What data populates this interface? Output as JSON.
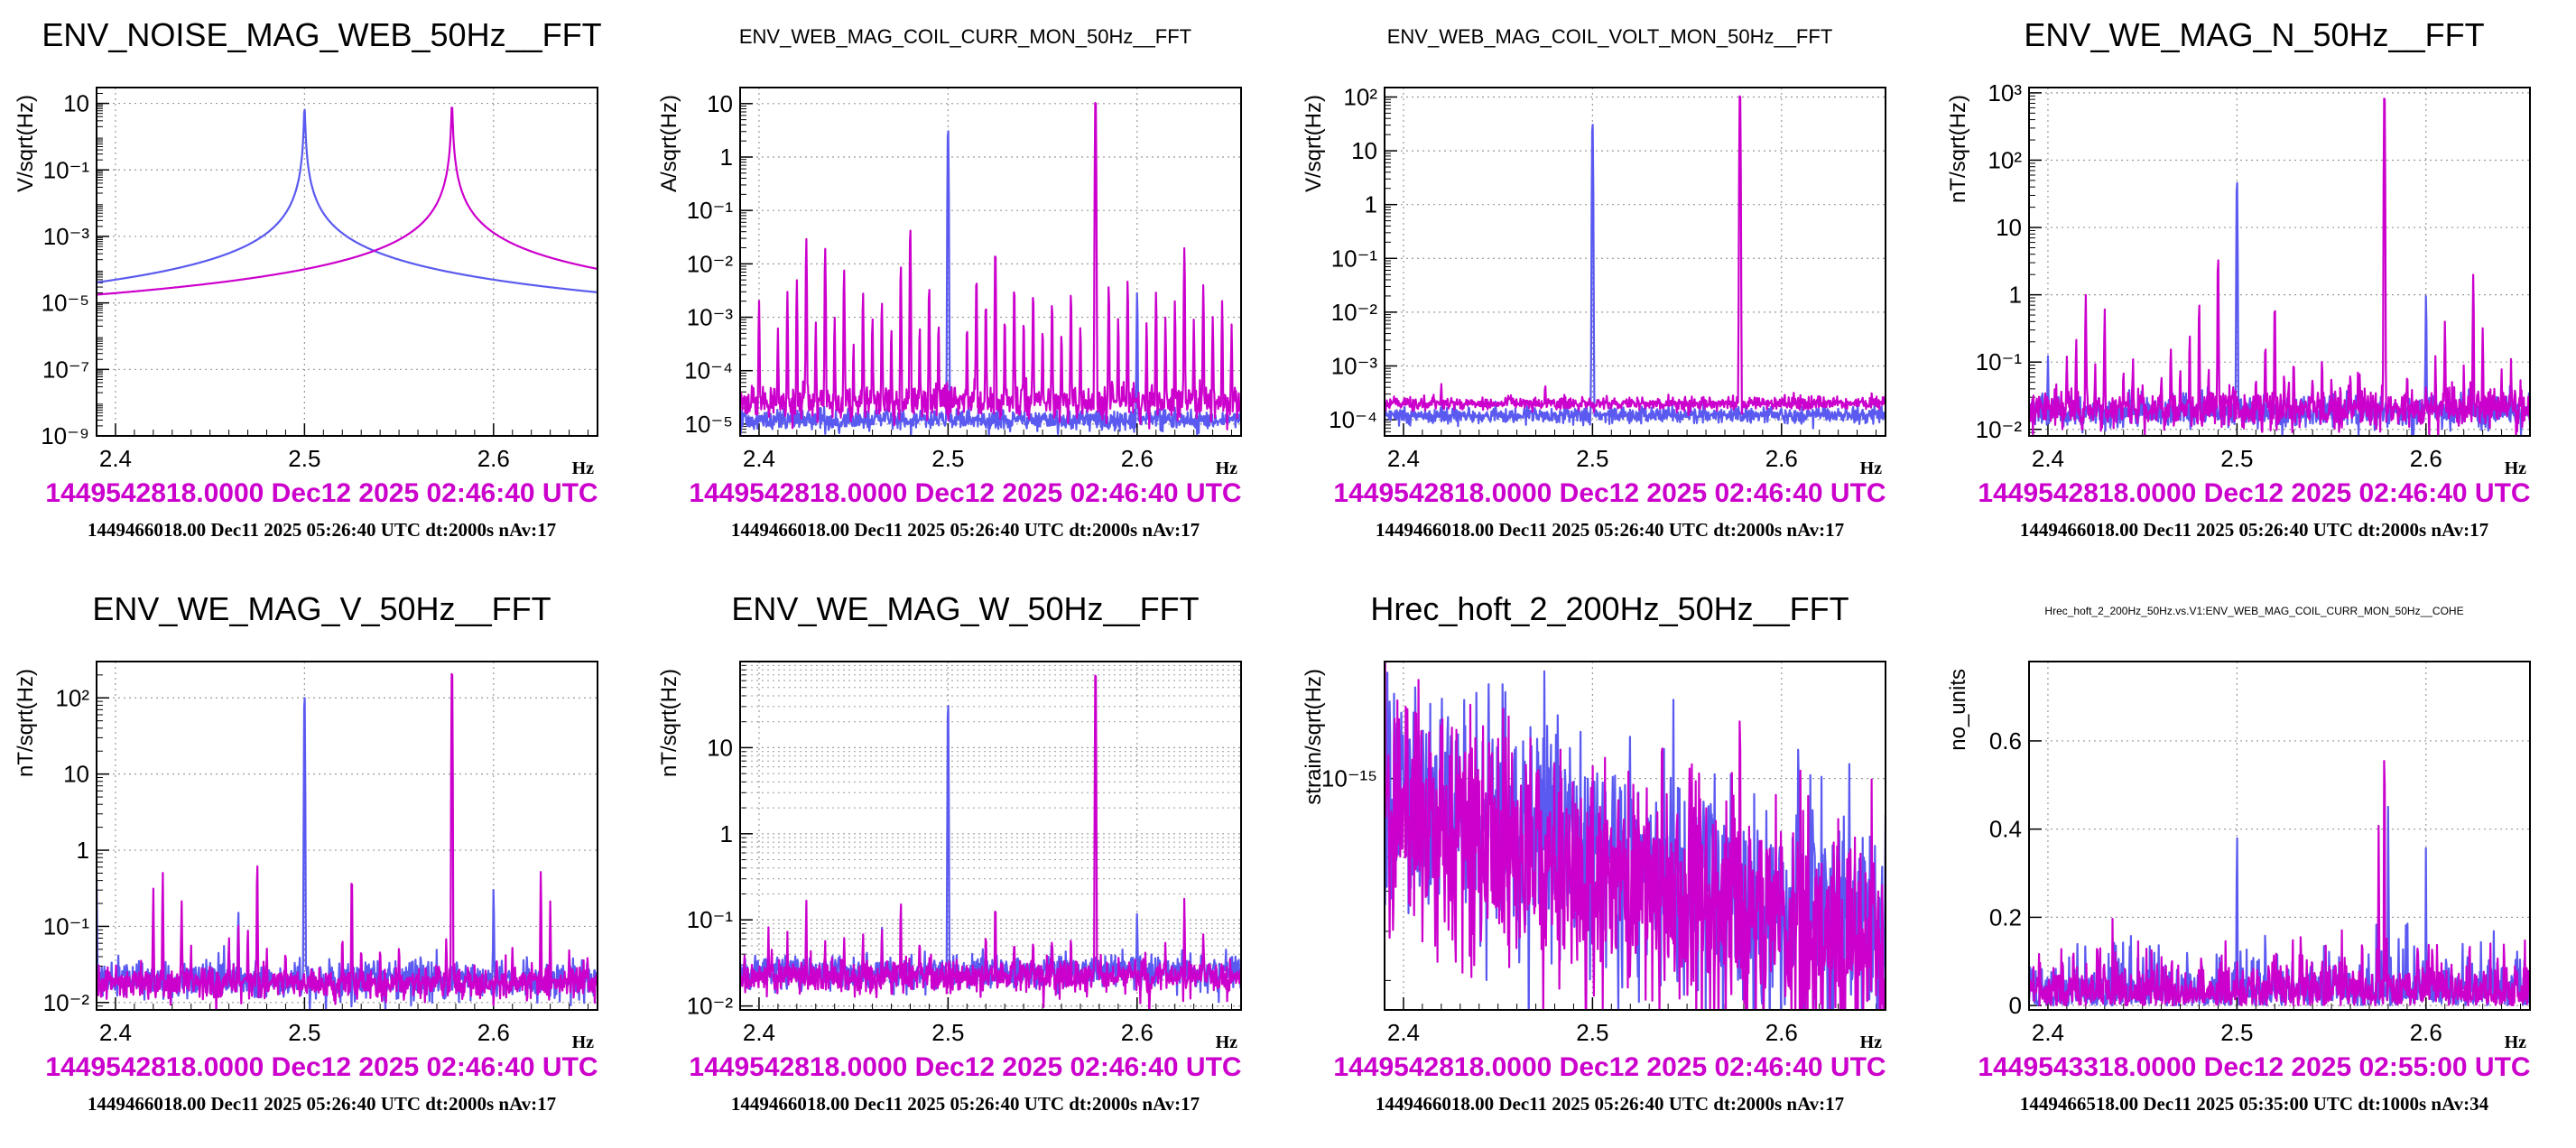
{
  "colors": {
    "reference": "#5a5af0",
    "current": "#cc00cc",
    "grid": "#9a9a9a"
  },
  "chart_data": [
    {
      "type": "line",
      "title": "ENV_NOISE_MAG_WEB_50Hz__FFT",
      "title_size": "large",
      "xlabel": "Hz",
      "ylabel": "V/sqrt(Hz)",
      "xlim": [
        2.39,
        2.655
      ],
      "ylim": [
        1e-09,
        30
      ],
      "yscale": "log",
      "xticks": [
        2.4,
        2.5,
        2.6
      ],
      "yticks": [
        1e-09,
        1e-07,
        1e-05,
        0.001,
        0.1,
        10
      ],
      "ytick_labels": [
        "10⁻⁹",
        "10⁻⁷",
        "10⁻⁵",
        "10⁻³",
        "10⁻¹",
        "10"
      ],
      "timestamp": "1449542818.0000 Dec12 2025 02:46:40 UTC",
      "reference_info": "1449466018.00 Dec11 2025 05:26:40 UTC dt:2000s nAv:17",
      "series": [
        {
          "role": "reference",
          "base": 2e-08,
          "resonance": {
            "x": 2.5,
            "peak": 8,
            "width": 0.00025
          },
          "spikes": [
            [
              2.6,
              1e-07
            ]
          ],
          "noise": 0.08
        },
        {
          "role": "current",
          "base": 2e-08,
          "resonance": {
            "x": 2.578,
            "peak": 10,
            "width": 0.00025
          },
          "spikes": [],
          "noise": 0.45
        }
      ]
    },
    {
      "type": "line",
      "title": "ENV_WEB_MAG_COIL_CURR_MON_50Hz__FFT",
      "title_size": "small",
      "xlabel": "Hz",
      "ylabel": "A/sqrt(Hz)",
      "xlim": [
        2.39,
        2.655
      ],
      "ylim": [
        6e-06,
        20
      ],
      "yscale": "log",
      "xticks": [
        2.4,
        2.5,
        2.6
      ],
      "yticks": [
        1e-05,
        0.0001,
        0.001,
        0.01,
        0.1,
        1,
        10
      ],
      "ytick_labels": [
        "10⁻⁵",
        "10⁻⁴",
        "10⁻³",
        "10⁻²",
        "10⁻¹",
        "1",
        "10"
      ],
      "timestamp": "1449542818.0000 Dec12 2025 02:46:40 UTC",
      "reference_info": "1449466018.00 Dec11 2025 05:26:40 UTC dt:2000s nAv:17",
      "series": [
        {
          "role": "reference",
          "base": 1.2e-05,
          "noise": 0.1,
          "spikes": [
            [
              2.5,
              4
            ],
            [
              2.6,
              0.003
            ]
          ]
        },
        {
          "role": "current",
          "base": 2.5e-05,
          "noise": 0.15,
          "spikes": [
            [
              2.4,
              0.002
            ],
            [
              2.41,
              0.0006
            ],
            [
              2.415,
              0.003
            ],
            [
              2.42,
              0.005
            ],
            [
              2.425,
              0.03
            ],
            [
              2.43,
              0.0008
            ],
            [
              2.435,
              0.02
            ],
            [
              2.44,
              0.001
            ],
            [
              2.445,
              0.008
            ],
            [
              2.45,
              0.0003
            ],
            [
              2.455,
              0.003
            ],
            [
              2.46,
              0.001
            ],
            [
              2.465,
              0.002
            ],
            [
              2.47,
              0.0006
            ],
            [
              2.475,
              0.01
            ],
            [
              2.48,
              0.05
            ],
            [
              2.485,
              0.0007
            ],
            [
              2.49,
              0.004
            ],
            [
              2.495,
              0.0008
            ],
            [
              2.51,
              0.0007
            ],
            [
              2.515,
              0.006
            ],
            [
              2.52,
              0.002
            ],
            [
              2.525,
              0.02
            ],
            [
              2.53,
              0.001
            ],
            [
              2.535,
              0.004
            ],
            [
              2.54,
              0.0009
            ],
            [
              2.545,
              0.003
            ],
            [
              2.55,
              0.0006
            ],
            [
              2.555,
              0.002
            ],
            [
              2.56,
              0.0005
            ],
            [
              2.565,
              0.003
            ],
            [
              2.57,
              0.0007
            ],
            [
              2.578,
              15
            ],
            [
              2.585,
              0.004
            ],
            [
              2.59,
              0.001
            ],
            [
              2.595,
              0.005
            ],
            [
              2.605,
              0.0008
            ],
            [
              2.61,
              0.003
            ],
            [
              2.615,
              0.001
            ],
            [
              2.62,
              0.002
            ],
            [
              2.625,
              0.02
            ],
            [
              2.63,
              0.0009
            ],
            [
              2.635,
              0.004
            ],
            [
              2.64,
              0.001
            ],
            [
              2.645,
              0.002
            ],
            [
              2.65,
              0.0007
            ]
          ]
        }
      ]
    },
    {
      "type": "line",
      "title": "ENV_WEB_MAG_COIL_VOLT_MON_50Hz__FFT",
      "title_size": "small",
      "xlabel": "Hz",
      "ylabel": "V/sqrt(Hz)",
      "xlim": [
        2.39,
        2.655
      ],
      "ylim": [
        5e-05,
        150
      ],
      "yscale": "log",
      "xticks": [
        2.4,
        2.5,
        2.6
      ],
      "yticks": [
        0.0001,
        0.001,
        0.01,
        0.1,
        1,
        10,
        100
      ],
      "ytick_labels": [
        "10⁻⁴",
        "10⁻³",
        "10⁻²",
        "10⁻¹",
        "1",
        "10",
        "10²"
      ],
      "timestamp": "1449542818.0000 Dec12 2025 02:46:40 UTC",
      "reference_info": "1449466018.00 Dec11 2025 05:26:40 UTC dt:2000s nAv:17",
      "series": [
        {
          "role": "reference",
          "base": 0.00012,
          "noise": 0.08,
          "spikes": [
            [
              2.5,
              40
            ]
          ]
        },
        {
          "role": "current",
          "base": 0.0002,
          "noise": 0.06,
          "spikes": [
            [
              2.578,
              150
            ],
            [
              2.42,
              0.0003
            ],
            [
              2.475,
              0.0003
            ]
          ]
        }
      ]
    },
    {
      "type": "line",
      "title": "ENV_WE_MAG_N_50Hz__FFT",
      "title_size": "large",
      "xlabel": "Hz",
      "ylabel": "nT/sqrt(Hz)",
      "xlim": [
        2.39,
        2.655
      ],
      "ylim": [
        0.008,
        1200
      ],
      "yscale": "log",
      "xticks": [
        2.4,
        2.5,
        2.6
      ],
      "yticks": [
        0.01,
        0.1,
        1,
        10,
        100,
        1000
      ],
      "ytick_labels": [
        "10⁻²",
        "10⁻¹",
        "1",
        "10",
        "10²",
        "10³"
      ],
      "timestamp": "1449542818.0000 Dec12 2025 02:46:40 UTC",
      "reference_info": "1449466018.00 Dec11 2025 05:26:40 UTC dt:2000s nAv:17",
      "series": [
        {
          "role": "reference",
          "base": 0.018,
          "noise": 0.12,
          "spikes": [
            [
              2.5,
              60
            ],
            [
              2.6,
              1
            ],
            [
              2.4,
              0.1
            ],
            [
              2.48,
              0.04
            ]
          ]
        },
        {
          "role": "current",
          "base": 0.02,
          "noise": 0.14,
          "spikes": [
            [
              2.41,
              0.1
            ],
            [
              2.415,
              0.2
            ],
            [
              2.42,
              1
            ],
            [
              2.425,
              0.06
            ],
            [
              2.43,
              0.6
            ],
            [
              2.44,
              0.05
            ],
            [
              2.445,
              0.1
            ],
            [
              2.45,
              0.03
            ],
            [
              2.46,
              0.05
            ],
            [
              2.465,
              0.15
            ],
            [
              2.47,
              0.06
            ],
            [
              2.475,
              0.25
            ],
            [
              2.48,
              0.8
            ],
            [
              2.485,
              0.05
            ],
            [
              2.49,
              4
            ],
            [
              2.51,
              0.05
            ],
            [
              2.515,
              0.2
            ],
            [
              2.52,
              0.8
            ],
            [
              2.525,
              0.04
            ],
            [
              2.53,
              0.1
            ],
            [
              2.54,
              0.05
            ],
            [
              2.545,
              0.08
            ],
            [
              2.55,
              0.04
            ],
            [
              2.56,
              0.06
            ],
            [
              2.565,
              0.05
            ],
            [
              2.578,
              1200
            ],
            [
              2.59,
              0.05
            ],
            [
              2.6,
              0.03
            ],
            [
              2.605,
              0.1
            ],
            [
              2.61,
              0.4
            ],
            [
              2.62,
              0.06
            ],
            [
              2.625,
              2
            ],
            [
              2.63,
              0.3
            ],
            [
              2.64,
              0.06
            ],
            [
              2.645,
              0.06
            ],
            [
              2.65,
              0.04
            ]
          ]
        }
      ]
    },
    {
      "type": "line",
      "title": "ENV_WE_MAG_V_50Hz__FFT",
      "title_size": "large",
      "xlabel": "Hz",
      "ylabel": "nT/sqrt(Hz)",
      "xlim": [
        2.39,
        2.655
      ],
      "ylim": [
        0.008,
        300
      ],
      "yscale": "log",
      "xticks": [
        2.4,
        2.5,
        2.6
      ],
      "yticks": [
        0.01,
        0.1,
        1,
        10,
        100
      ],
      "ytick_labels": [
        "10⁻²",
        "10⁻¹",
        "1",
        "10",
        "10²"
      ],
      "timestamp": "1449542818.0000 Dec12 2025 02:46:40 UTC",
      "reference_info": "1449466018.00 Dec11 2025 05:26:40 UTC dt:2000s nAv:17",
      "series": [
        {
          "role": "reference",
          "base": 0.02,
          "noise": 0.12,
          "spikes": [
            [
              2.5,
              130
            ],
            [
              2.6,
              0.3
            ],
            [
              2.465,
              0.15
            ],
            [
              2.39,
              0.4
            ]
          ]
        },
        {
          "role": "current",
          "base": 0.018,
          "noise": 0.1,
          "spikes": [
            [
              2.42,
              0.3
            ],
            [
              2.425,
              0.5
            ],
            [
              2.435,
              0.2
            ],
            [
              2.44,
              0.04
            ],
            [
              2.46,
              0.06
            ],
            [
              2.465,
              0.1
            ],
            [
              2.47,
              0.08
            ],
            [
              2.475,
              0.7
            ],
            [
              2.48,
              0.04
            ],
            [
              2.49,
              0.03
            ],
            [
              2.52,
              0.05
            ],
            [
              2.525,
              0.5
            ],
            [
              2.53,
              0.04
            ],
            [
              2.54,
              0.04
            ],
            [
              2.55,
              0.03
            ],
            [
              2.575,
              0.06
            ],
            [
              2.578,
              300
            ],
            [
              2.61,
              0.04
            ],
            [
              2.625,
              0.5
            ],
            [
              2.63,
              0.2
            ],
            [
              2.64,
              0.03
            ]
          ]
        }
      ]
    },
    {
      "type": "line",
      "title": "ENV_WE_MAG_W_50Hz__FFT",
      "title_size": "large",
      "xlabel": "Hz",
      "ylabel": "nT/sqrt(Hz)",
      "xlim": [
        2.39,
        2.655
      ],
      "ylim": [
        0.009,
        100
      ],
      "yscale": "log",
      "xticks": [
        2.4,
        2.5,
        2.6
      ],
      "yticks": [
        0.01,
        0.1,
        1,
        10
      ],
      "ytick_labels": [
        "10⁻²",
        "10⁻¹",
        "1",
        "10"
      ],
      "minor_grid": true,
      "timestamp": "1449542818.0000 Dec12 2025 02:46:40 UTC",
      "reference_info": "1449466018.00 Dec11 2025 05:26:40 UTC dt:2000s nAv:17",
      "series": [
        {
          "role": "reference",
          "base": 0.025,
          "noise": 0.1,
          "spikes": [
            [
              2.5,
              40
            ],
            [
              2.6,
              0.1
            ],
            [
              2.465,
              0.05
            ]
          ]
        },
        {
          "role": "current",
          "base": 0.022,
          "noise": 0.1,
          "spikes": [
            [
              2.405,
              0.04
            ],
            [
              2.415,
              0.05
            ],
            [
              2.425,
              0.15
            ],
            [
              2.435,
              0.04
            ],
            [
              2.445,
              0.05
            ],
            [
              2.455,
              0.04
            ],
            [
              2.465,
              0.06
            ],
            [
              2.475,
              0.15
            ],
            [
              2.485,
              0.04
            ],
            [
              2.52,
              0.05
            ],
            [
              2.525,
              0.15
            ],
            [
              2.535,
              0.04
            ],
            [
              2.545,
              0.04
            ],
            [
              2.555,
              0.04
            ],
            [
              2.565,
              0.04
            ],
            [
              2.578,
              100
            ],
            [
              2.615,
              0.04
            ],
            [
              2.625,
              0.15
            ],
            [
              2.635,
              0.04
            ]
          ]
        }
      ]
    },
    {
      "type": "line",
      "title": "Hrec_hoft_2_200Hz_50Hz__FFT",
      "title_size": "large",
      "xlabel": "Hz",
      "ylabel": "strain/sqrt(Hz)",
      "xlim": [
        2.39,
        2.655
      ],
      "ylim": [
        3.5e-16,
        1.7e-15
      ],
      "yscale": "log",
      "xticks": [
        2.4,
        2.5,
        2.6
      ],
      "yticks": [
        1e-15
      ],
      "ytick_labels": [
        "10⁻¹⁵"
      ],
      "timestamp": "1449542818.0000 Dec12 2025 02:46:40 UTC",
      "reference_info": "1449466018.00 Dec11 2025 05:26:40 UTC dt:2000s nAv:17",
      "series": [
        {
          "role": "reference",
          "trend": [
            [
              2.39,
              9.5e-16
            ],
            [
              2.655,
              5e-16
            ]
          ],
          "noise": 0.11,
          "spikes": []
        },
        {
          "role": "current",
          "trend": [
            [
              2.39,
              8.5e-16
            ],
            [
              2.655,
              4.6e-16
            ]
          ],
          "noise": 0.12,
          "spikes": [
            [
              2.578,
              1e-15
            ]
          ]
        }
      ]
    },
    {
      "type": "line",
      "title": "Hrec_hoft_2_200Hz_50Hz.vs.V1:ENV_WEB_MAG_COIL_CURR_MON_50Hz__COHE",
      "title_size": "tiny",
      "xlabel": "Hz",
      "ylabel": "no_units",
      "xlim": [
        2.39,
        2.655
      ],
      "ylim": [
        -0.01,
        0.78
      ],
      "yscale": "linear",
      "xticks": [
        2.4,
        2.5,
        2.6
      ],
      "yticks": [
        0,
        0.2,
        0.4,
        0.6
      ],
      "ytick_labels": [
        "0",
        "0.2",
        "0.4",
        "0.6"
      ],
      "timestamp": "1449543318.0000 Dec12 2025 02:55:00 UTC",
      "reference_info": "1449466518.00 Dec11 2025 05:35:00 UTC dt:1000s nAv:34",
      "series": [
        {
          "role": "reference",
          "cohe": true,
          "base": 0.03,
          "noise": 0.05,
          "spikes": [
            [
              2.5,
              0.44
            ],
            [
              2.6,
              0.33
            ],
            [
              2.58,
              0.46
            ]
          ]
        },
        {
          "role": "current",
          "cohe": true,
          "base": 0.03,
          "noise": 0.05,
          "spikes": [
            [
              2.578,
              0.73
            ],
            [
              2.575,
              0.45
            ],
            [
              2.5,
              0.1
            ]
          ]
        }
      ]
    }
  ]
}
